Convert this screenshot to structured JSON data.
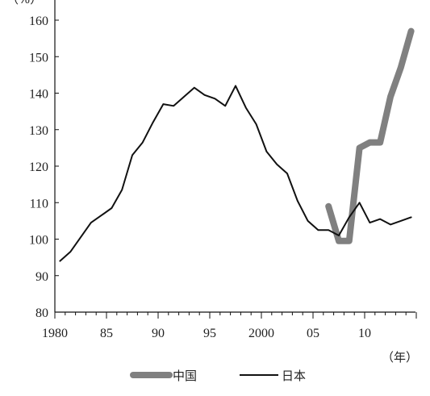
{
  "chart_data": {
    "type": "line",
    "y_unit_label": "（%）",
    "x_unit_label": "（年）",
    "ylim": [
      80,
      160
    ],
    "xlim": [
      1980,
      2015
    ],
    "y_ticks": [
      80,
      90,
      100,
      110,
      120,
      130,
      140,
      150,
      160
    ],
    "y_tick_labels": [
      "80",
      "90",
      "100",
      "110",
      "120",
      "130",
      "140",
      "150",
      "160"
    ],
    "x_ticks": [
      1980,
      1985,
      1990,
      1995,
      2000,
      2005,
      2010
    ],
    "x_tick_labels": [
      "1980",
      "85",
      "90",
      "95",
      "2000",
      "05",
      "10"
    ],
    "grid": false,
    "legend_position": "bottom",
    "series": [
      {
        "name": "中国",
        "color": "#808080",
        "style": "thick",
        "x": [
          2006.5,
          2007.5,
          2008.5,
          2009.5,
          2010.5,
          2011.5,
          2012.5,
          2013.5,
          2014.5
        ],
        "y": [
          109,
          99.5,
          99.5,
          125,
          126.5,
          126.5,
          139,
          147,
          157
        ]
      },
      {
        "name": "日本",
        "color": "#111111",
        "style": "thin",
        "x": [
          1980.5,
          1981.5,
          1982.5,
          1983.5,
          1984.5,
          1985.5,
          1986.5,
          1987.5,
          1988.5,
          1989.5,
          1990.5,
          1991.5,
          1992.5,
          1993.5,
          1994.5,
          1995.5,
          1996.5,
          1997.5,
          1998.5,
          1999.5,
          2000.5,
          2001.5,
          2002.5,
          2003.5,
          2004.5,
          2005.5,
          2006.5,
          2007.5,
          2008.5,
          2009.5,
          2010.5,
          2011.5,
          2012.5,
          2013.5,
          2014.5
        ],
        "y": [
          94,
          96.5,
          100.5,
          104.5,
          106.5,
          108.5,
          113.5,
          123,
          126.5,
          132,
          137,
          136.5,
          139,
          141.5,
          139.5,
          138.5,
          136.5,
          142,
          136,
          131.5,
          124,
          120.5,
          118,
          110.5,
          105,
          102.5,
          102.5,
          101,
          106,
          110,
          104.5,
          105.5,
          104,
          105,
          106
        ]
      }
    ]
  }
}
